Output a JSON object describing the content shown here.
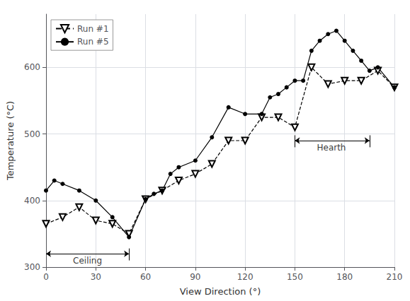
{
  "chart_data": {
    "type": "line",
    "xlabel": "View Direction (°)",
    "ylabel": "Temperature (°C)",
    "xlim": [
      0,
      210
    ],
    "ylim": [
      300,
      680
    ],
    "xticks": [
      0,
      30,
      60,
      90,
      120,
      150,
      180,
      210
    ],
    "yticks": [
      300,
      400,
      500,
      600
    ],
    "grid": true,
    "legend": "upper left",
    "series": [
      {
        "name": "Run #1",
        "color": "#000000",
        "marker": "triangle-down",
        "line_style": "dashed",
        "x": [
          0,
          10,
          20,
          30,
          40,
          50,
          60,
          70,
          80,
          90,
          100,
          110,
          120,
          130,
          140,
          150,
          160,
          170,
          180,
          190,
          200,
          210
        ],
        "values": [
          365,
          375,
          390,
          370,
          365,
          350,
          402,
          415,
          430,
          440,
          455,
          490,
          490,
          525,
          525,
          510,
          600,
          575,
          580,
          580,
          595,
          570
        ]
      },
      {
        "name": "Run #5",
        "color": "#000000",
        "marker": "circle",
        "line_style": "solid",
        "x": [
          0,
          5,
          10,
          20,
          30,
          40,
          50,
          60,
          65,
          70,
          75,
          80,
          90,
          100,
          110,
          120,
          130,
          135,
          140,
          145,
          150,
          155,
          160,
          165,
          170,
          175,
          180,
          185,
          190,
          195,
          200,
          210
        ],
        "values": [
          415,
          430,
          425,
          415,
          400,
          375,
          345,
          402,
          410,
          415,
          440,
          450,
          460,
          495,
          540,
          530,
          530,
          555,
          560,
          570,
          580,
          580,
          625,
          640,
          650,
          655,
          640,
          625,
          610,
          595,
          600,
          570
        ]
      }
    ],
    "annotations": [
      {
        "text": "Ceiling",
        "x_start": 0,
        "x_end": 50,
        "y": 320,
        "label_x": 25,
        "ticks_x": [
          50
        ],
        "ticks_y": [
          310,
          328
        ]
      },
      {
        "text": "Hearth",
        "x_start": 150,
        "x_end": 195,
        "y": 490,
        "label_x": 172,
        "ticks_x": [
          150,
          195
        ],
        "ticks_y": [
          480,
          498
        ]
      }
    ]
  }
}
